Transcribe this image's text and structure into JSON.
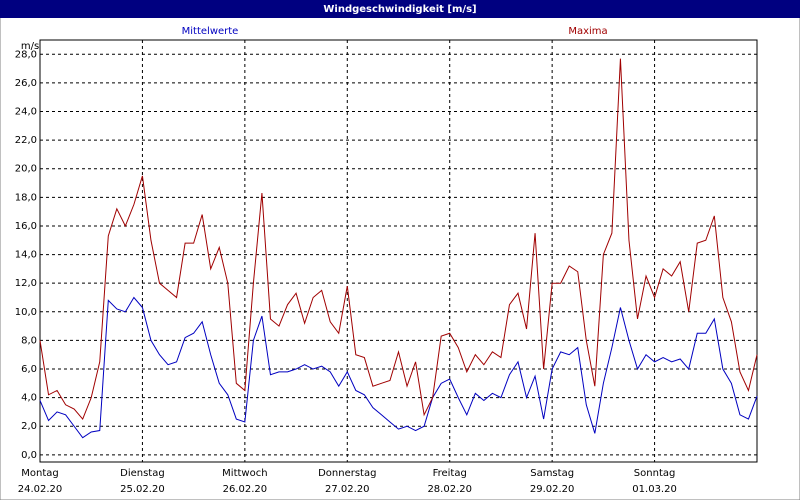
{
  "chart_data": {
    "type": "line",
    "title": "Windgeschwindigkeit [m/s]",
    "y_unit": "m/s",
    "x": [
      0,
      2,
      4,
      6,
      8,
      10,
      12,
      14,
      16,
      18,
      20,
      22,
      24,
      26,
      28,
      30,
      32,
      34,
      36,
      38,
      40,
      42,
      44,
      46,
      48,
      50,
      52,
      54,
      56,
      58,
      60,
      62,
      64,
      66,
      68,
      70,
      72,
      74,
      76,
      78,
      80,
      82,
      84,
      86,
      88,
      90,
      92,
      94,
      96,
      98,
      100,
      102,
      104,
      106,
      108,
      110,
      112,
      114,
      116,
      118,
      120,
      122,
      124,
      126,
      128,
      130,
      132,
      134,
      136,
      138,
      140,
      142,
      144,
      146,
      148,
      150,
      152,
      154,
      156,
      158,
      160,
      162,
      164,
      166,
      168
    ],
    "xlim": [
      0,
      168
    ],
    "xticks": [
      {
        "value": 0,
        "label": "Montag",
        "date": "24.02.20"
      },
      {
        "value": 24,
        "label": "Dienstag",
        "date": "25.02.20"
      },
      {
        "value": 48,
        "label": "Mittwoch",
        "date": "26.02.20"
      },
      {
        "value": 72,
        "label": "Donnerstag",
        "date": "27.02.20"
      },
      {
        "value": 96,
        "label": "Freitag",
        "date": "28.02.20"
      },
      {
        "value": 120,
        "label": "Samstag",
        "date": "29.02.20"
      },
      {
        "value": 144,
        "label": "Sonntag",
        "date": "01.03.20"
      }
    ],
    "ylim": [
      -0.5,
      29
    ],
    "yticks": [
      {
        "value": 0,
        "label": "0,0"
      },
      {
        "value": 2,
        "label": "2,0"
      },
      {
        "value": 4,
        "label": "4,0"
      },
      {
        "value": 6,
        "label": "6,0"
      },
      {
        "value": 8,
        "label": "8,0"
      },
      {
        "value": 10,
        "label": "10,0"
      },
      {
        "value": 12,
        "label": "12,0"
      },
      {
        "value": 14,
        "label": "14,0"
      },
      {
        "value": 16,
        "label": "16,0"
      },
      {
        "value": 18,
        "label": "18,0"
      },
      {
        "value": 20,
        "label": "20,0"
      },
      {
        "value": 22,
        "label": "22,0"
      },
      {
        "value": 24,
        "label": "24,0"
      },
      {
        "value": 26,
        "label": "26,0"
      },
      {
        "value": 28,
        "label": "28,0"
      }
    ],
    "grid": true,
    "series": [
      {
        "name": "Mittelwerte",
        "color": "#0000c0",
        "values": [
          3.8,
          2.4,
          3.0,
          2.8,
          2.0,
          1.2,
          1.6,
          1.7,
          10.8,
          10.2,
          10.0,
          11.0,
          10.3,
          8.0,
          7.0,
          6.3,
          6.5,
          8.2,
          8.5,
          9.3,
          7.0,
          5.0,
          4.2,
          2.5,
          2.3,
          8.0,
          9.7,
          5.6,
          5.8,
          5.8,
          6.0,
          6.3,
          6.0,
          6.2,
          5.8,
          4.8,
          5.8,
          4.5,
          4.2,
          3.3,
          2.8,
          2.3,
          1.8,
          2.0,
          1.7,
          2.0,
          4.0,
          5.0,
          5.3,
          4.0,
          2.8,
          4.3,
          3.8,
          4.3,
          4.0,
          5.6,
          6.5,
          4.0,
          5.5,
          2.5,
          6.0,
          7.2,
          7.0,
          7.5,
          3.5,
          1.5,
          5.0,
          7.5,
          10.3,
          8.0,
          6.0,
          7.0,
          6.5,
          6.8,
          6.5,
          6.7,
          6.0,
          8.5,
          8.5,
          9.5,
          6.0,
          5.0,
          2.8,
          2.5,
          4.1
        ]
      },
      {
        "name": "Maxima",
        "color": "#a00000",
        "values": [
          8.0,
          4.2,
          4.5,
          3.5,
          3.2,
          2.5,
          4.0,
          6.5,
          15.3,
          17.2,
          16.0,
          17.5,
          19.5,
          15.0,
          12.0,
          11.5,
          11.0,
          14.8,
          14.8,
          16.8,
          13.0,
          14.5,
          12.0,
          5.0,
          4.5,
          12.0,
          18.3,
          9.5,
          9.0,
          10.5,
          11.3,
          9.2,
          11.0,
          11.5,
          9.3,
          8.5,
          11.8,
          7.0,
          6.8,
          4.8,
          5.0,
          5.2,
          7.2,
          4.8,
          6.5,
          2.8,
          4.0,
          8.3,
          8.5,
          7.5,
          5.8,
          7.0,
          6.3,
          7.2,
          6.8,
          10.5,
          11.3,
          8.8,
          15.5,
          6.0,
          12.0,
          12.0,
          13.2,
          12.8,
          8.0,
          4.8,
          14.0,
          15.5,
          27.7,
          15.0,
          9.5,
          12.5,
          11.0,
          13.0,
          12.5,
          13.5,
          10.0,
          14.8,
          15.0,
          16.7,
          11.0,
          9.3,
          5.8,
          4.5,
          7.0
        ]
      }
    ]
  }
}
